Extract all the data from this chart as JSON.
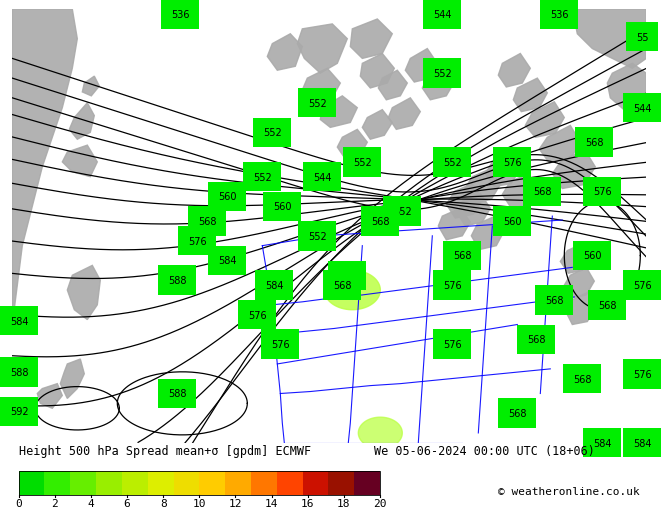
{
  "title_text": "Height 500 hPa Spread mean+σ [gpdm] ECMWF",
  "title_right": "We 05-06-2024 00:00 UTC (18+06)",
  "copyright": "© weatheronline.co.uk",
  "colorbar_ticks": [
    0,
    2,
    4,
    6,
    8,
    10,
    12,
    14,
    16,
    18,
    20
  ],
  "colorbar_colors": [
    "#00dd00",
    "#33ee00",
    "#66ee00",
    "#99ee00",
    "#bbee00",
    "#ddee00",
    "#eedd00",
    "#ffcc00",
    "#ffaa00",
    "#ff7700",
    "#ff4400",
    "#cc1100",
    "#991100",
    "#660022"
  ],
  "bg_green": "#00ee00",
  "grey_land": "#aaaaaa",
  "fig_width": 6.34,
  "fig_height": 4.9,
  "title_fontsize": 8.5,
  "label_fontsize": 7.5,
  "contour_label_fontsize": 7,
  "colorbar_label_fontsize": 8
}
